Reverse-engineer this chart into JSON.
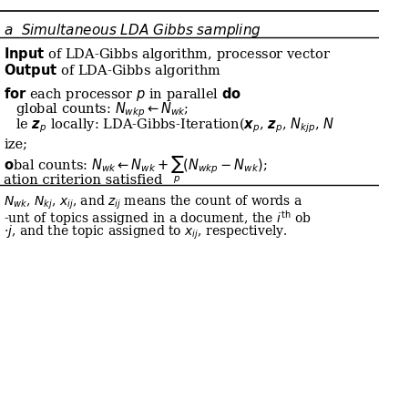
{
  "title": "a  Simultaneous LDA Gibbs sampling",
  "bg_color": "#ffffff",
  "text_color": "#000000",
  "fig_width": 4.39,
  "fig_height": 4.39,
  "dpi": 100
}
